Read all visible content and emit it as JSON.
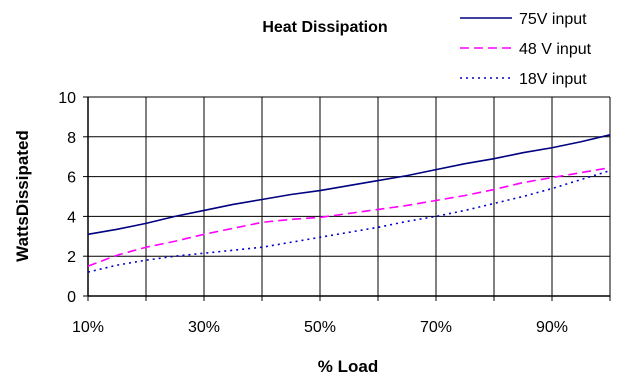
{
  "chart_data": {
    "type": "line",
    "title": "Heat Dissipation",
    "xlabel": "% Load",
    "ylabel": "WattsDissipated",
    "x": [
      10,
      15,
      20,
      25,
      30,
      35,
      40,
      45,
      50,
      55,
      60,
      65,
      70,
      75,
      80,
      85,
      90,
      95,
      100
    ],
    "xlim": [
      10,
      100
    ],
    "ylim": [
      0,
      10
    ],
    "x_ticks": [
      10,
      30,
      50,
      70,
      90
    ],
    "x_tick_labels": [
      "10%",
      "30%",
      "50%",
      "70%",
      "90%"
    ],
    "y_ticks": [
      0,
      2,
      4,
      6,
      8,
      10
    ],
    "y_tick_labels": [
      "0",
      "2",
      "4",
      "6",
      "8",
      "10"
    ],
    "x_grid_step": 10,
    "grid": true,
    "legend_position": "top-right",
    "series": [
      {
        "name": "75V input",
        "color": "#000080",
        "style": "solid",
        "values": [
          3.1,
          3.35,
          3.65,
          4.0,
          4.3,
          4.6,
          4.85,
          5.1,
          5.3,
          5.55,
          5.8,
          6.05,
          6.35,
          6.65,
          6.9,
          7.2,
          7.45,
          7.75,
          8.1
        ]
      },
      {
        "name": "48 V input",
        "color": "#ff00ff",
        "style": "dashed",
        "values": [
          1.5,
          2.05,
          2.45,
          2.75,
          3.1,
          3.4,
          3.7,
          3.85,
          3.95,
          4.15,
          4.35,
          4.55,
          4.8,
          5.05,
          5.35,
          5.7,
          5.95,
          6.2,
          6.45
        ]
      },
      {
        "name": "18V input",
        "color": "#0000cc",
        "style": "dotted",
        "values": [
          1.2,
          1.55,
          1.8,
          2.0,
          2.15,
          2.3,
          2.45,
          2.7,
          2.95,
          3.2,
          3.45,
          3.75,
          4.0,
          4.3,
          4.65,
          5.0,
          5.4,
          5.85,
          6.3
        ]
      }
    ]
  }
}
